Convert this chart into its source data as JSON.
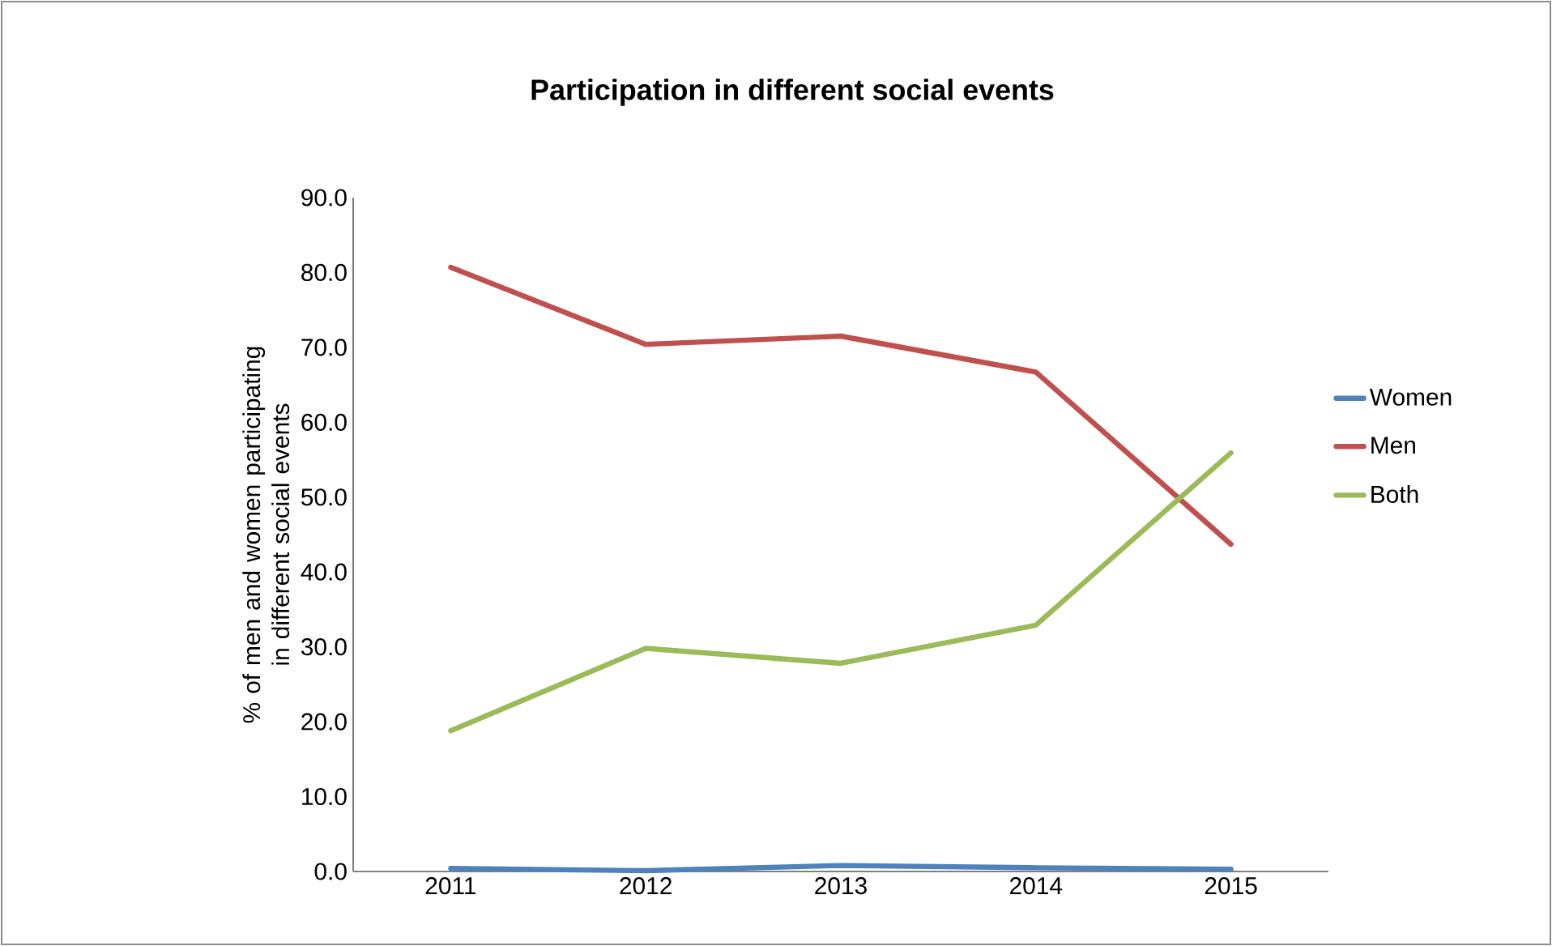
{
  "chart_data": {
    "type": "line",
    "title": "Participation in different social events",
    "ylabel": "% of men and women participating in different social events",
    "categories": [
      "2011",
      "2012",
      "2013",
      "2014",
      "2015"
    ],
    "series": [
      {
        "name": "Women",
        "color": "#4f81bd",
        "values": [
          0.4,
          0.1,
          0.8,
          0.5,
          0.3
        ]
      },
      {
        "name": "Men",
        "color": "#c0504d",
        "values": [
          80.7,
          70.4,
          71.5,
          66.7,
          43.7
        ]
      },
      {
        "name": "Both",
        "color": "#9bbb59",
        "values": [
          18.8,
          29.8,
          27.8,
          32.9,
          55.9
        ]
      }
    ],
    "ylim": [
      0,
      90
    ],
    "yticks": [
      {
        "value": 0,
        "label": "0.0"
      },
      {
        "value": 10,
        "label": "10.0"
      },
      {
        "value": 20,
        "label": "20.0"
      },
      {
        "value": 30,
        "label": "30.0"
      },
      {
        "value": 40,
        "label": "40.0"
      },
      {
        "value": 50,
        "label": "50.0"
      },
      {
        "value": 60,
        "label": "60.0"
      },
      {
        "value": 70,
        "label": "70.0"
      },
      {
        "value": 80,
        "label": "80.0"
      },
      {
        "value": 90,
        "label": "90.0"
      }
    ],
    "grid": false,
    "legend": "right",
    "marker": "none",
    "line_style": "solid"
  }
}
